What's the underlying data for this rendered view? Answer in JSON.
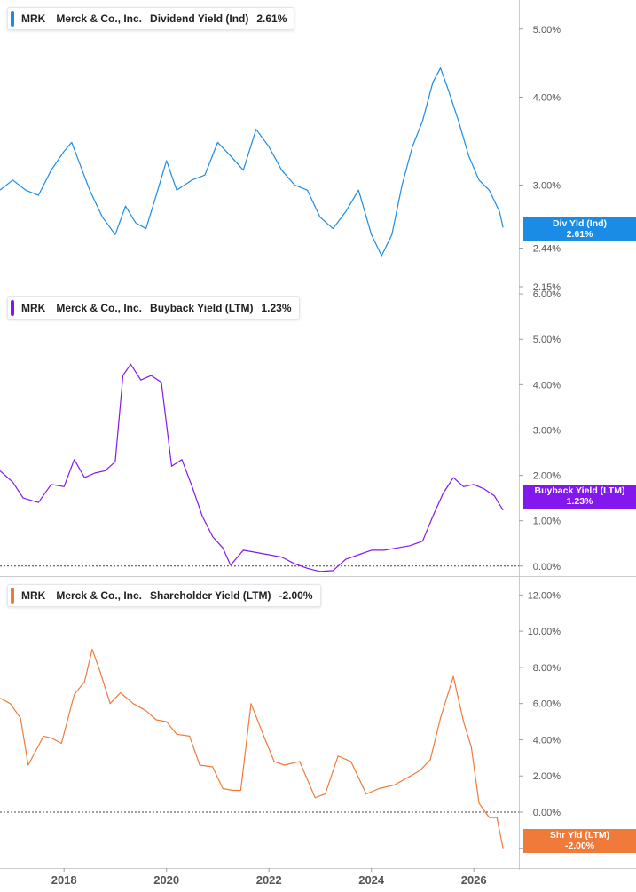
{
  "chart_data": [
    {
      "type": "line",
      "legend": {
        "ticker": "MRK",
        "company": "Merck & Co., Inc.",
        "metric": "Dividend Yield (Ind)",
        "value": "2.61%"
      },
      "tag": {
        "label": "Div Yld (Ind)",
        "value": "2.61%"
      },
      "color": "#1a8ce6",
      "yscale": "log",
      "ylim": [
        2.15,
        5.5
      ],
      "yticks": [
        "2.15%",
        "2.44%",
        "3.00%",
        "4.00%",
        "5.00%"
      ],
      "ytick_values": [
        2.15,
        2.44,
        3.0,
        4.0,
        5.0
      ],
      "x": [
        2016.75,
        2017.0,
        2017.25,
        2017.5,
        2017.75,
        2018.0,
        2018.15,
        2018.25,
        2018.5,
        2018.75,
        2019.0,
        2019.2,
        2019.4,
        2019.6,
        2019.8,
        2020.0,
        2020.2,
        2020.5,
        2020.75,
        2021.0,
        2021.25,
        2021.5,
        2021.75,
        2022.0,
        2022.25,
        2022.5,
        2022.75,
        2023.0,
        2023.25,
        2023.5,
        2023.75,
        2024.0,
        2024.2,
        2024.4,
        2024.6,
        2024.8,
        2025.0,
        2025.2,
        2025.35,
        2025.5,
        2025.7,
        2025.9,
        2026.1,
        2026.3,
        2026.5,
        2026.57
      ],
      "y": [
        2.95,
        3.05,
        2.95,
        2.9,
        3.15,
        3.35,
        3.45,
        3.3,
        2.95,
        2.7,
        2.55,
        2.8,
        2.65,
        2.6,
        2.9,
        3.25,
        2.95,
        3.05,
        3.1,
        3.45,
        3.3,
        3.15,
        3.6,
        3.4,
        3.15,
        3.0,
        2.95,
        2.7,
        2.6,
        2.75,
        2.95,
        2.55,
        2.38,
        2.55,
        3.0,
        3.4,
        3.7,
        4.2,
        4.4,
        4.1,
        3.7,
        3.3,
        3.05,
        2.95,
        2.75,
        2.61
      ]
    },
    {
      "type": "line",
      "legend": {
        "ticker": "MRK",
        "company": "Merck & Co., Inc.",
        "metric": "Buyback Yield (LTM)",
        "value": "1.23%"
      },
      "tag": {
        "label": "Buyback Yield (LTM)",
        "value": "1.23%"
      },
      "color": "#8218ed",
      "ylim": [
        -0.2,
        6.1
      ],
      "yticks": [
        "0.00%",
        "1.00%",
        "2.00%",
        "3.00%",
        "4.00%",
        "5.00%",
        "6.00%"
      ],
      "ytick_values": [
        0,
        1,
        2,
        3,
        4,
        5,
        6
      ],
      "x": [
        2016.75,
        2017.0,
        2017.2,
        2017.5,
        2017.75,
        2018.0,
        2018.2,
        2018.4,
        2018.6,
        2018.8,
        2019.0,
        2019.15,
        2019.3,
        2019.5,
        2019.7,
        2019.9,
        2020.1,
        2020.3,
        2020.5,
        2020.7,
        2020.9,
        2021.1,
        2021.25,
        2021.5,
        2021.75,
        2022.0,
        2022.25,
        2022.5,
        2022.75,
        2023.0,
        2023.25,
        2023.5,
        2023.75,
        2024.0,
        2024.25,
        2024.5,
        2024.75,
        2025.0,
        2025.2,
        2025.4,
        2025.6,
        2025.8,
        2026.0,
        2026.2,
        2026.4,
        2026.57
      ],
      "y": [
        2.1,
        1.85,
        1.5,
        1.4,
        1.8,
        1.75,
        2.35,
        1.95,
        2.05,
        2.1,
        2.3,
        4.2,
        4.45,
        4.1,
        4.2,
        4.05,
        2.2,
        2.35,
        1.75,
        1.1,
        0.65,
        0.4,
        0.02,
        0.35,
        0.3,
        0.25,
        0.2,
        0.05,
        -0.05,
        -0.12,
        -0.1,
        0.15,
        0.25,
        0.35,
        0.35,
        0.4,
        0.45,
        0.55,
        1.1,
        1.6,
        1.95,
        1.75,
        1.8,
        1.7,
        1.55,
        1.23
      ]
    },
    {
      "type": "line",
      "legend": {
        "ticker": "MRK",
        "company": "Merck & Co., Inc.",
        "metric": "Shareholder Yield (LTM)",
        "value": "-2.00%"
      },
      "tag": {
        "label": "Shr Yld (LTM)",
        "value": "-2.00%"
      },
      "color": "#f07a3a",
      "ylim": [
        -2.6,
        13.0
      ],
      "yticks": [
        "-2.00%",
        "0.00%",
        "2.00%",
        "4.00%",
        "6.00%",
        "8.00%",
        "10.00%",
        "12.00%"
      ],
      "ytick_values": [
        -2,
        0,
        2,
        4,
        6,
        8,
        10,
        12
      ],
      "x": [
        2016.75,
        2016.95,
        2017.15,
        2017.3,
        2017.6,
        2017.75,
        2017.95,
        2018.2,
        2018.4,
        2018.55,
        2018.7,
        2018.9,
        2019.1,
        2019.35,
        2019.6,
        2019.8,
        2020.0,
        2020.2,
        2020.45,
        2020.65,
        2020.9,
        2021.1,
        2021.3,
        2021.45,
        2021.65,
        2021.9,
        2022.1,
        2022.3,
        2022.6,
        2022.9,
        2023.1,
        2023.35,
        2023.6,
        2023.9,
        2024.15,
        2024.45,
        2024.7,
        2024.95,
        2025.15,
        2025.35,
        2025.6,
        2025.8,
        2025.95,
        2026.1,
        2026.3,
        2026.45,
        2026.57
      ],
      "y": [
        6.3,
        6.0,
        5.2,
        2.6,
        4.2,
        4.1,
        3.8,
        6.5,
        7.2,
        9.0,
        7.8,
        6.0,
        6.6,
        6.0,
        5.6,
        5.1,
        5.0,
        4.3,
        4.2,
        2.6,
        2.5,
        1.3,
        1.2,
        1.2,
        6.0,
        4.2,
        2.8,
        2.6,
        2.8,
        0.8,
        1.0,
        3.1,
        2.8,
        1.0,
        1.3,
        1.5,
        1.9,
        2.3,
        2.9,
        5.2,
        7.5,
        5.0,
        3.6,
        0.5,
        -0.3,
        -0.3,
        -2.0
      ]
    }
  ],
  "x_axis": {
    "ticks": [
      "2018",
      "2020",
      "2022",
      "2024",
      "2026"
    ],
    "tick_values": [
      2018,
      2020,
      2022,
      2024,
      2026
    ]
  }
}
